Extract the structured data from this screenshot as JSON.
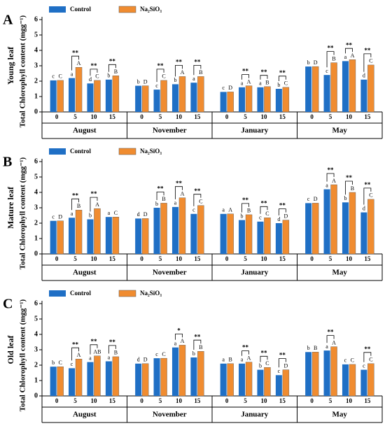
{
  "chart_data": [
    {
      "type": "bar",
      "panel_label": "A",
      "leaf_label": "Young leaf",
      "ylabel": "Total Chlorophyll content (mgg⁻¹)",
      "groups": [
        "August",
        "November",
        "January",
        "May"
      ],
      "categories": [
        "0",
        "5",
        "10",
        "15",
        "0",
        "5",
        "10",
        "15",
        "0",
        "5",
        "10",
        "15",
        "0",
        "5",
        "10",
        "15"
      ],
      "ylim": [
        0,
        6
      ],
      "yticks": [
        0,
        1,
        2,
        3,
        4,
        5,
        6
      ],
      "series": [
        {
          "name": "Control",
          "color": "#1f6fc5",
          "values": [
            2.05,
            2.2,
            1.85,
            2.1,
            1.7,
            1.45,
            1.8,
            1.9,
            1.3,
            1.6,
            1.6,
            1.5,
            2.95,
            2.4,
            3.3,
            2.1
          ],
          "letters": [
            "c",
            "a",
            "d",
            "b",
            "b",
            "c",
            "b",
            "a",
            "c",
            "a",
            "a",
            "b",
            "b",
            "c",
            "a",
            "d"
          ]
        },
        {
          "name": "Na₂SiO₃",
          "color": "#f08c30",
          "values": [
            2.05,
            2.9,
            2.05,
            2.35,
            1.7,
            2.05,
            2.3,
            2.3,
            1.3,
            1.7,
            1.65,
            1.6,
            2.95,
            3.2,
            3.4,
            3.05
          ],
          "letters": [
            "C",
            "A",
            "C",
            "B",
            "D",
            "C",
            "A",
            "B",
            "D",
            "A",
            "B",
            "C",
            "D",
            "B",
            "A",
            "C"
          ]
        }
      ],
      "significance": [
        null,
        "**",
        "**",
        "**",
        null,
        "**",
        "**",
        "**",
        null,
        "**",
        "**",
        "**",
        null,
        "**",
        "**",
        "**"
      ]
    },
    {
      "type": "bar",
      "panel_label": "B",
      "leaf_label": "Mature leaf",
      "ylabel": "Total Chlorophyll content (mgg⁻¹)",
      "groups": [
        "August",
        "November",
        "January",
        "May"
      ],
      "categories": [
        "0",
        "5",
        "10",
        "15",
        "0",
        "5",
        "10",
        "15",
        "0",
        "5",
        "10",
        "15",
        "0",
        "5",
        "10",
        "15"
      ],
      "ylim": [
        0,
        6
      ],
      "yticks": [
        0,
        1,
        2,
        3,
        4,
        5,
        6
      ],
      "series": [
        {
          "name": "Control",
          "color": "#1f6fc5",
          "values": [
            2.15,
            2.35,
            2.25,
            2.4,
            2.3,
            3.0,
            3.05,
            2.6,
            2.6,
            2.2,
            2.1,
            2.0,
            3.3,
            4.2,
            3.35,
            2.7
          ],
          "letters": [
            "c",
            "a",
            "b",
            "a",
            "d",
            "b",
            "a",
            "c",
            "a",
            "b",
            "c",
            "d",
            "c",
            "a",
            "b",
            "d"
          ]
        },
        {
          "name": "Na₂SiO₃",
          "color": "#f08c30",
          "values": [
            2.15,
            2.85,
            2.95,
            2.4,
            2.3,
            3.3,
            3.65,
            3.15,
            2.6,
            2.55,
            2.35,
            2.2,
            3.3,
            4.5,
            4.0,
            3.55
          ],
          "letters": [
            "D",
            "B",
            "A",
            "C",
            "D",
            "B",
            "A",
            "C",
            "A",
            "B",
            "C",
            "D",
            "D",
            "A",
            "B",
            "C"
          ]
        }
      ],
      "significance": [
        null,
        "**",
        "**",
        null,
        null,
        "**",
        "**",
        "**",
        null,
        "**",
        "**",
        "**",
        null,
        "**",
        "**",
        "**"
      ]
    },
    {
      "type": "bar",
      "panel_label": "C",
      "leaf_label": "Old leaf",
      "ylabel": "Total Chlorophyll content (mgg⁻¹)",
      "groups": [
        "August",
        "November",
        "January",
        "May"
      ],
      "categories": [
        "0",
        "5",
        "10",
        "15",
        "0",
        "5",
        "10",
        "15",
        "0",
        "5",
        "10",
        "15",
        "0",
        "5",
        "10",
        "15"
      ],
      "ylim": [
        0,
        6
      ],
      "yticks": [
        0,
        1,
        2,
        3,
        4,
        5,
        6
      ],
      "series": [
        {
          "name": "Control",
          "color": "#1f6fc5",
          "values": [
            1.9,
            1.8,
            2.2,
            2.25,
            2.1,
            2.45,
            3.15,
            2.5,
            2.1,
            2.1,
            1.7,
            1.35,
            2.85,
            2.95,
            2.05,
            1.7
          ],
          "letters": [
            "b",
            "c",
            "a",
            "a",
            "d",
            "c",
            "a",
            "b",
            "a",
            "a",
            "b",
            "c",
            "b",
            "a",
            "c",
            "c"
          ]
        },
        {
          "name": "Na₂SiO₃",
          "color": "#f08c30",
          "values": [
            1.9,
            2.4,
            2.6,
            2.55,
            2.1,
            2.45,
            3.3,
            2.9,
            2.1,
            2.2,
            1.85,
            1.7,
            2.85,
            3.2,
            2.05,
            2.1
          ],
          "letters": [
            "C",
            "A",
            "AB",
            "B",
            "D",
            "C",
            "A",
            "B",
            "B",
            "A",
            "C",
            "D",
            "B",
            "A",
            "C",
            "C"
          ]
        }
      ],
      "significance": [
        null,
        "**",
        "**",
        "**",
        null,
        null,
        "*",
        "**",
        null,
        "**",
        "**",
        "**",
        null,
        "**",
        null,
        "**"
      ]
    }
  ]
}
